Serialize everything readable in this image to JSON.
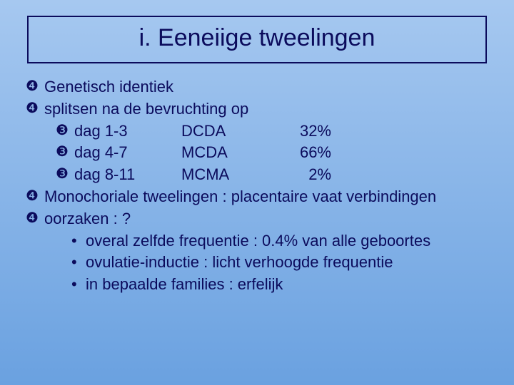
{
  "title": "i.  Eeneiige tweelingen",
  "colors": {
    "text": "#0b0b5c",
    "border": "#0b0b5c",
    "bg_top": "#a6c8f0",
    "bg_bottom": "#6aa1e0"
  },
  "bullets": {
    "top": "❹",
    "mid": "❸",
    "sub": "•"
  },
  "items": {
    "l1": "Genetisch identiek",
    "l2": "splitsen na de bevruchting op",
    "split": [
      {
        "day": "dag 1-3",
        "code": "DCDA",
        "pct": "32%"
      },
      {
        "day": "dag 4-7",
        "code": "MCDA",
        "pct": "66%"
      },
      {
        "day": "dag 8-11",
        "code": "MCMA",
        "pct": "2%"
      }
    ],
    "l3": "Monochoriale tweelingen : placentaire vaat verbindingen",
    "l4": "oorzaken : ?",
    "causes": [
      "overal zelfde frequentie : 0.4% van alle geboortes",
      "ovulatie-inductie : licht verhoogde frequentie",
      "in bepaalde families : erfelijk"
    ]
  }
}
